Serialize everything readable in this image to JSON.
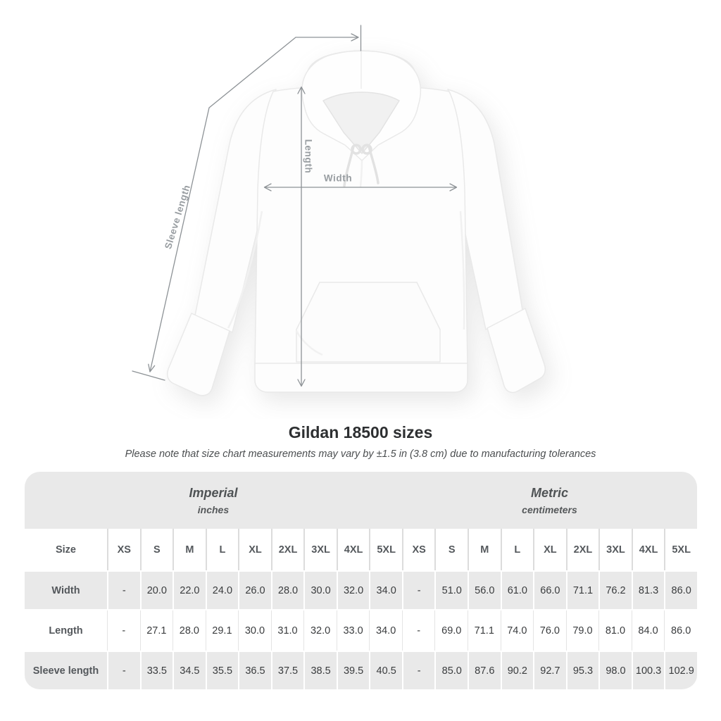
{
  "diagram": {
    "line_color": "#8d9296",
    "label_color": "#989da1",
    "labels": {
      "sleeve_length": "Sleeve length",
      "length": "Length",
      "width": "Width"
    }
  },
  "chart_data": {
    "type": "table",
    "title": "Gildan 18500 sizes",
    "subtitle": "Please note that size chart measurements may vary by ±1.5 in (3.8 cm) due to manufacturing tolerances",
    "size_column_header": "Size",
    "unit_groups": [
      {
        "label": "Imperial",
        "sublabel": "inches"
      },
      {
        "label": "Metric",
        "sublabel": "centimeters"
      }
    ],
    "sizes": [
      "XS",
      "S",
      "M",
      "L",
      "XL",
      "2XL",
      "3XL",
      "4XL",
      "5XL"
    ],
    "measurements": [
      {
        "label": "Width",
        "imperial": [
          "-",
          "20.0",
          "22.0",
          "24.0",
          "26.0",
          "28.0",
          "30.0",
          "32.0",
          "34.0"
        ],
        "metric": [
          "-",
          "51.0",
          "56.0",
          "61.0",
          "66.0",
          "71.1",
          "76.2",
          "81.3",
          "86.0"
        ]
      },
      {
        "label": "Length",
        "imperial": [
          "-",
          "27.1",
          "28.0",
          "29.1",
          "30.0",
          "31.0",
          "32.0",
          "33.0",
          "34.0"
        ],
        "metric": [
          "-",
          "69.0",
          "71.1",
          "74.0",
          "76.0",
          "79.0",
          "81.0",
          "84.0",
          "86.0"
        ]
      },
      {
        "label": "Sleeve length",
        "imperial": [
          "-",
          "33.5",
          "34.5",
          "35.5",
          "36.5",
          "37.5",
          "38.5",
          "39.5",
          "40.5"
        ],
        "metric": [
          "-",
          "85.0",
          "87.6",
          "90.2",
          "92.7",
          "95.3",
          "98.0",
          "100.3",
          "102.9"
        ]
      }
    ],
    "table_colors": {
      "stripe_gray": "#e9e9e9",
      "header_text": "#54585c",
      "value_text": "#3a3c3e"
    }
  }
}
